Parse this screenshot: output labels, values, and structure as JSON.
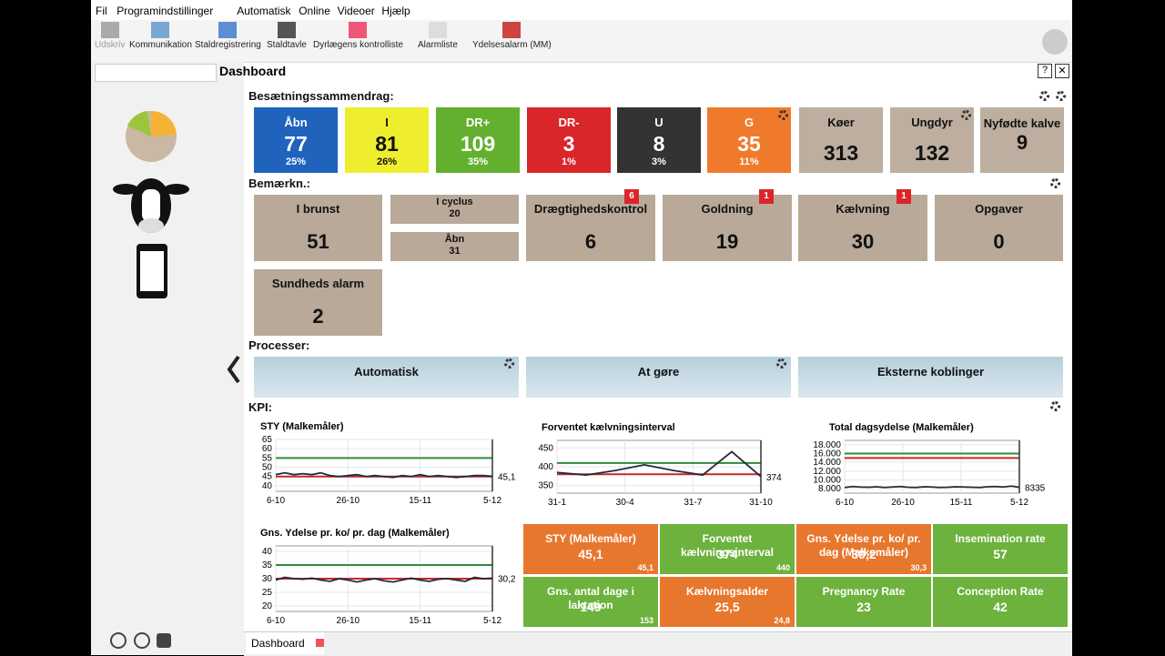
{
  "menu": [
    "Fil",
    "Programindstillinger",
    "Automatisk",
    "Online",
    "Videoer",
    "Hjælp"
  ],
  "toolbar": [
    "Udskriv",
    "Kommunikation",
    "Staldregistrering",
    "Staldtavle",
    "Dyrlægens kontrolliste",
    "Alarmliste",
    "Ydelsesalarm (MM)"
  ],
  "header": {
    "title": "Dashboard"
  },
  "summary": {
    "title": "Besætningssammendrag:",
    "tiles": [
      {
        "label": "Åbn",
        "value": 77,
        "percent": "25%",
        "color": "#1f63bd"
      },
      {
        "label": "I",
        "value": 81,
        "percent": "26%",
        "color": "#eeee2e"
      },
      {
        "label": "DR+",
        "value": 109,
        "percent": "35%",
        "color": "#63b02f"
      },
      {
        "label": "DR-",
        "value": 3,
        "percent": "1%",
        "color": "#d9262b"
      },
      {
        "label": "U",
        "value": 8,
        "percent": "3%",
        "color": "#333333"
      },
      {
        "label": "G",
        "value": 35,
        "percent": "11%",
        "color": "#f07a2c"
      },
      {
        "label": "Køer",
        "value": 313,
        "color": "#bdaea0"
      },
      {
        "label": "Ungdyr",
        "value": 132,
        "color": "#bdaea0"
      },
      {
        "label": "Nyfødte kalve",
        "value": 9,
        "color": "#bdaea0"
      }
    ]
  },
  "remarks": {
    "title": "Bemærkn.:",
    "tiles": [
      {
        "label": "I brunst",
        "value": 51
      },
      {
        "label": "I cyclus",
        "value": 20
      },
      {
        "label": "Åbn",
        "value": 31
      },
      {
        "label": "Drægtighedskontrol",
        "value": 6,
        "badge": 6
      },
      {
        "label": "Goldning",
        "value": 19,
        "badge": 1
      },
      {
        "label": "Kælvning",
        "value": 30,
        "badge": 1
      },
      {
        "label": "Opgaver",
        "value": 0
      },
      {
        "label": "Sundheds alarm",
        "value": 2
      }
    ]
  },
  "processes": {
    "title": "Processer:",
    "items": [
      "Automatisk",
      "At gøre",
      "Eksterne koblinger"
    ]
  },
  "kpi": {
    "title": "KPI:",
    "charts": [
      {
        "title": "STY (Malkemåler)",
        "ylim": [
          37,
          65
        ],
        "yticks": [
          40,
          45,
          50,
          55,
          60,
          65
        ],
        "xlabels": [
          "6-10",
          "26-10",
          "15-11",
          "5-12"
        ],
        "upper": 55,
        "lower": 45,
        "last_label": "45,1",
        "values": [
          46,
          47,
          46,
          46.5,
          46,
          47,
          45.5,
          45,
          45.5,
          46,
          45,
          45.5,
          45,
          44.5,
          45.5,
          45,
          46,
          45,
          45.5,
          45,
          44.5,
          45,
          45.5,
          45.5,
          45.1
        ]
      },
      {
        "title": "Forventet kælvningsinterval",
        "ylim": [
          330,
          470
        ],
        "yticks": [
          350,
          400,
          450
        ],
        "xlabels": [
          "31-1",
          "30-4",
          "31-7",
          "31-10"
        ],
        "upper": 410,
        "lower": 380,
        "last_label": "374",
        "values": [
          385,
          378,
          390,
          405,
          390,
          378,
          440,
          374
        ]
      },
      {
        "title": "Total dagsydelse (Malkemåler)",
        "ylim": [
          7000,
          19000
        ],
        "yticks": [
          {
            "value": 8000,
            "label": "8.000"
          },
          {
            "value": 10000,
            "label": "10.000"
          },
          {
            "value": 12000,
            "label": "12.000"
          },
          {
            "value": 14000,
            "label": "14.000"
          },
          {
            "value": 16000,
            "label": "16.000"
          },
          {
            "value": 18000,
            "label": "18.000"
          }
        ],
        "xlabels": [
          "6-10",
          "26-10",
          "15-11",
          "5-12"
        ],
        "upper": 16000,
        "lower": 15000,
        "last_label": "8335",
        "values": [
          8300,
          8500,
          8400,
          8350,
          8450,
          8300,
          8400,
          8500,
          8350,
          8300,
          8450,
          8400,
          8300,
          8350,
          8450,
          8400,
          8350,
          8300,
          8450,
          8500,
          8400,
          8600,
          8335
        ]
      },
      {
        "title": "Gns. Ydelse pr. ko/ pr. dag (Malkemåler)",
        "ylim": [
          18,
          42
        ],
        "yticks": [
          20,
          25,
          30,
          35,
          40
        ],
        "xlabels": [
          "6-10",
          "26-10",
          "15-11",
          "5-12"
        ],
        "upper": 35,
        "lower": 30,
        "last_label": "30,2",
        "values": [
          29.5,
          30.5,
          30,
          29.8,
          30.2,
          29.5,
          29,
          30,
          29.5,
          28.8,
          29.5,
          30,
          29.2,
          28.8,
          29.5,
          30.2,
          29.5,
          29,
          29.8,
          30,
          29.5,
          29,
          30.5,
          30,
          30.2
        ]
      }
    ],
    "tiles": [
      {
        "label": "STY (Malkemåler)",
        "value": "45,1",
        "target": "45,1",
        "color": "#e8772e"
      },
      {
        "label": "Forventet kælvningsinterval",
        "value": 374,
        "target": 440,
        "color": "#6cb23d"
      },
      {
        "label": "Gns. Ydelse pr. ko/ pr. dag (Malkemåler)",
        "value": "30,2",
        "target": "30,3",
        "color": "#e8772e"
      },
      {
        "label": "Insemination rate",
        "value": 57,
        "color": "#6cb23d"
      },
      {
        "label": "Gns. antal dage i laktation",
        "value": 149,
        "target": 153,
        "color": "#6cb23d"
      },
      {
        "label": "Kælvningsalder",
        "value": "25,5",
        "target": "24,8",
        "color": "#e8772e"
      },
      {
        "label": "Pregnancy Rate",
        "value": 23,
        "color": "#6cb23d"
      },
      {
        "label": "Conception Rate",
        "value": 42,
        "color": "#6cb23d"
      }
    ]
  },
  "footer": {
    "tab": "Dashboard"
  }
}
